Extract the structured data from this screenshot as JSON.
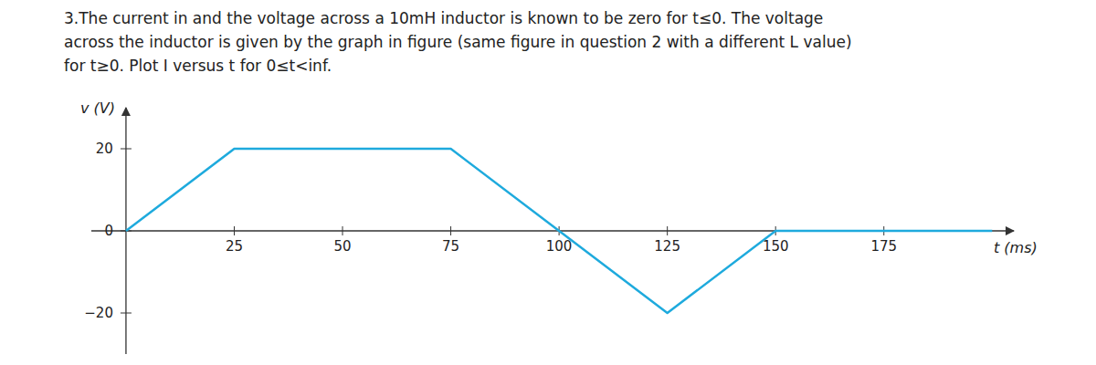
{
  "chart_data": {
    "type": "line",
    "title": [
      "3.The current in  and the voltage across a 10mH inductor is known to be zero for t≤0. The voltage",
      "across the inductor is given by the graph in figure (same figure in question 2 with a different L value)",
      "for t≥0. Plot I versus t for 0≤t<inf."
    ],
    "x": [
      0,
      25,
      75,
      125,
      150,
      200
    ],
    "values": [
      0,
      20,
      20,
      -20,
      0,
      0
    ],
    "color": "#1EAADD",
    "x_label": "t (ms)",
    "y_label": "v (V)",
    "xlim": [
      -8,
      205
    ],
    "ylim": [
      -30,
      30
    ],
    "xticks": [
      25,
      50,
      75,
      100,
      125,
      150,
      175
    ],
    "yticks": [
      {
        "value": -20,
        "label": "−20"
      },
      0,
      20
    ],
    "grid": false
  }
}
